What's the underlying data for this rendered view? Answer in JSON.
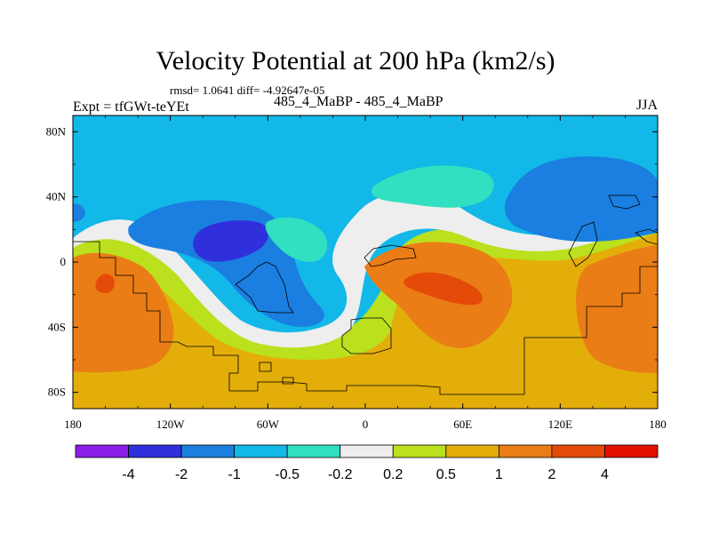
{
  "chart_data": {
    "type": "heatmap",
    "title": "Velocity Potential at 200 hPa (km2/s)",
    "stats_line": "rmsd= 1.0641 diff= -4.92647e-05",
    "left_label": "Expt = tfGWt-teYEt",
    "center_label": "485_4_MaBP - 485_4_MaBP",
    "right_label": "JJA",
    "x_axis": {
      "min": -180,
      "max": 180,
      "ticks": [
        {
          "value": -180,
          "label": "180"
        },
        {
          "value": -120,
          "label": "120W"
        },
        {
          "value": -60,
          "label": "60W"
        },
        {
          "value": 0,
          "label": "0"
        },
        {
          "value": 60,
          "label": "60E"
        },
        {
          "value": 120,
          "label": "120E"
        },
        {
          "value": 180,
          "label": "180"
        }
      ]
    },
    "y_axis": {
      "min": -90,
      "max": 90,
      "ticks": [
        {
          "value": 80,
          "label": "80N"
        },
        {
          "value": 40,
          "label": "40N"
        },
        {
          "value": 0,
          "label": "0"
        },
        {
          "value": -40,
          "label": "40S"
        },
        {
          "value": -80,
          "label": "80S"
        }
      ]
    },
    "colorbar": {
      "colors": [
        "#8c1ce8",
        "#2f30dc",
        "#1a7fe0",
        "#12b8e8",
        "#30e0c0",
        "#eeeeee",
        "#bbe01e",
        "#e3ae0a",
        "#ea7d16",
        "#e44a08",
        "#e31000"
      ],
      "labels": [
        "-4",
        "-2",
        "-1",
        "-0.5",
        "-0.2",
        "0.2",
        "0.5",
        "1",
        "2",
        "4"
      ]
    },
    "field_regions": [
      {
        "label": "-2",
        "level": 1,
        "lon": -90,
        "lat": 20
      },
      {
        "label": "-1",
        "level": 2,
        "lon": 120,
        "lat": 42
      },
      {
        "label": "-1",
        "level": 2,
        "lon": -80,
        "lat": 10
      },
      {
        "label": "-0.5",
        "level": 3,
        "lon": 0,
        "lat": 70
      },
      {
        "label": "1",
        "level": 7,
        "lon": 30,
        "lat": -70
      },
      {
        "label": "2",
        "level": 8,
        "lon": 50,
        "lat": -10
      },
      {
        "label": "4",
        "level": 9,
        "lon": 48,
        "lat": -15
      },
      {
        "label": "2",
        "level": 8,
        "lon": -160,
        "lat": -30
      },
      {
        "label": "2",
        "level": 8,
        "lon": 165,
        "lat": -30
      }
    ]
  }
}
